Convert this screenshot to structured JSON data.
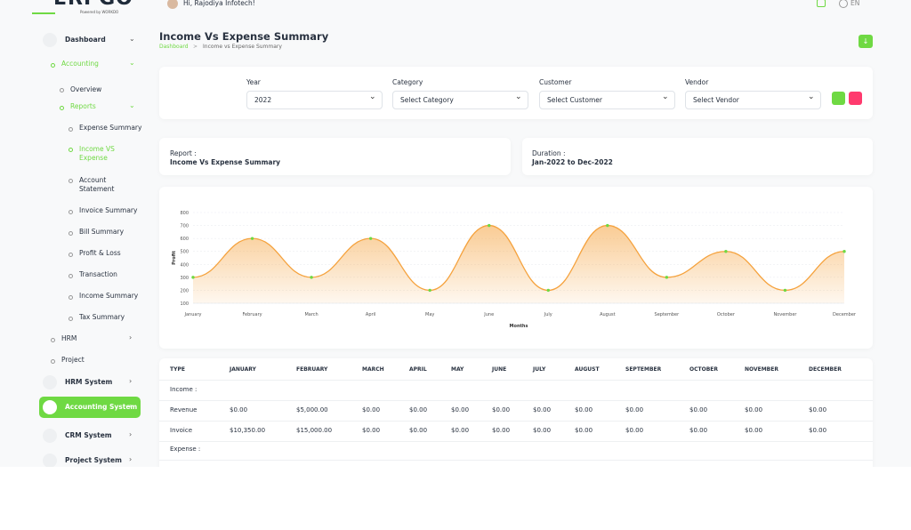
{
  "header": {
    "logo": "ERPGO",
    "logo_sub": "Powered by WORKDO",
    "greeting": "Hi, Rajodiya Infotech!",
    "language": "EN"
  },
  "sidebar": {
    "items": [
      "Dashboard",
      "Accounting",
      "Overview",
      "Reports",
      "Expense Summary",
      "Income VS Expense",
      "Account Statement",
      "Invoice Summary",
      "Bill Summary",
      "Profit & Loss",
      "Transaction",
      "Income Summary",
      "Tax Summary",
      "HRM",
      "Project",
      "HRM System",
      "Accounting System",
      "CRM System",
      "Project System"
    ]
  },
  "page": {
    "title": "Income Vs Expense Summary",
    "breadcrumb": [
      "Dashboard",
      "Income vs Expense Summary"
    ]
  },
  "filters": [
    {
      "label": "Year",
      "value": "2022"
    },
    {
      "label": "Category",
      "value": "Select Category"
    },
    {
      "label": "Customer",
      "value": "Select Customer"
    },
    {
      "label": "Vendor",
      "value": "Select Vendor"
    }
  ],
  "report": {
    "report_label": "Report :",
    "report_value": "Income Vs Expense Summary",
    "duration_label": "Duration :",
    "duration_value": "Jan-2022 to Dec-2022"
  },
  "chart_data": {
    "type": "area",
    "categories": [
      "January",
      "February",
      "March",
      "April",
      "May",
      "June",
      "July",
      "August",
      "September",
      "October",
      "November",
      "December"
    ],
    "values": [
      300,
      600,
      300,
      600,
      200,
      700,
      200,
      700,
      300,
      500,
      200,
      500
    ],
    "ylim": [
      100,
      800
    ],
    "yticks": [
      100,
      200,
      300,
      400,
      500,
      600,
      700,
      800
    ],
    "xlabel": "Months",
    "ylabel": "Profit",
    "color": "#f5a23d",
    "marker_color": "#6fd943",
    "grid": true
  },
  "table": {
    "headers": [
      "TYPE",
      "JANUARY",
      "FEBRUARY",
      "MARCH",
      "APRIL",
      "MAY",
      "JUNE",
      "JULY",
      "AUGUST",
      "SEPTEMBER",
      "OCTOBER",
      "NOVEMBER",
      "DECEMBER"
    ],
    "rows": [
      [
        "Income :"
      ],
      [
        "Revenue",
        "$0.00",
        "$5,000.00",
        "$0.00",
        "$0.00",
        "$0.00",
        "$0.00",
        "$0.00",
        "$0.00",
        "$0.00",
        "$0.00",
        "$0.00",
        "$0.00"
      ],
      [
        "Invoice",
        "$10,350.00",
        "$15,000.00",
        "$0.00",
        "$0.00",
        "$0.00",
        "$0.00",
        "$0.00",
        "$0.00",
        "$0.00",
        "$0.00",
        "$0.00",
        "$0.00"
      ],
      [
        "Expense :"
      ]
    ]
  }
}
